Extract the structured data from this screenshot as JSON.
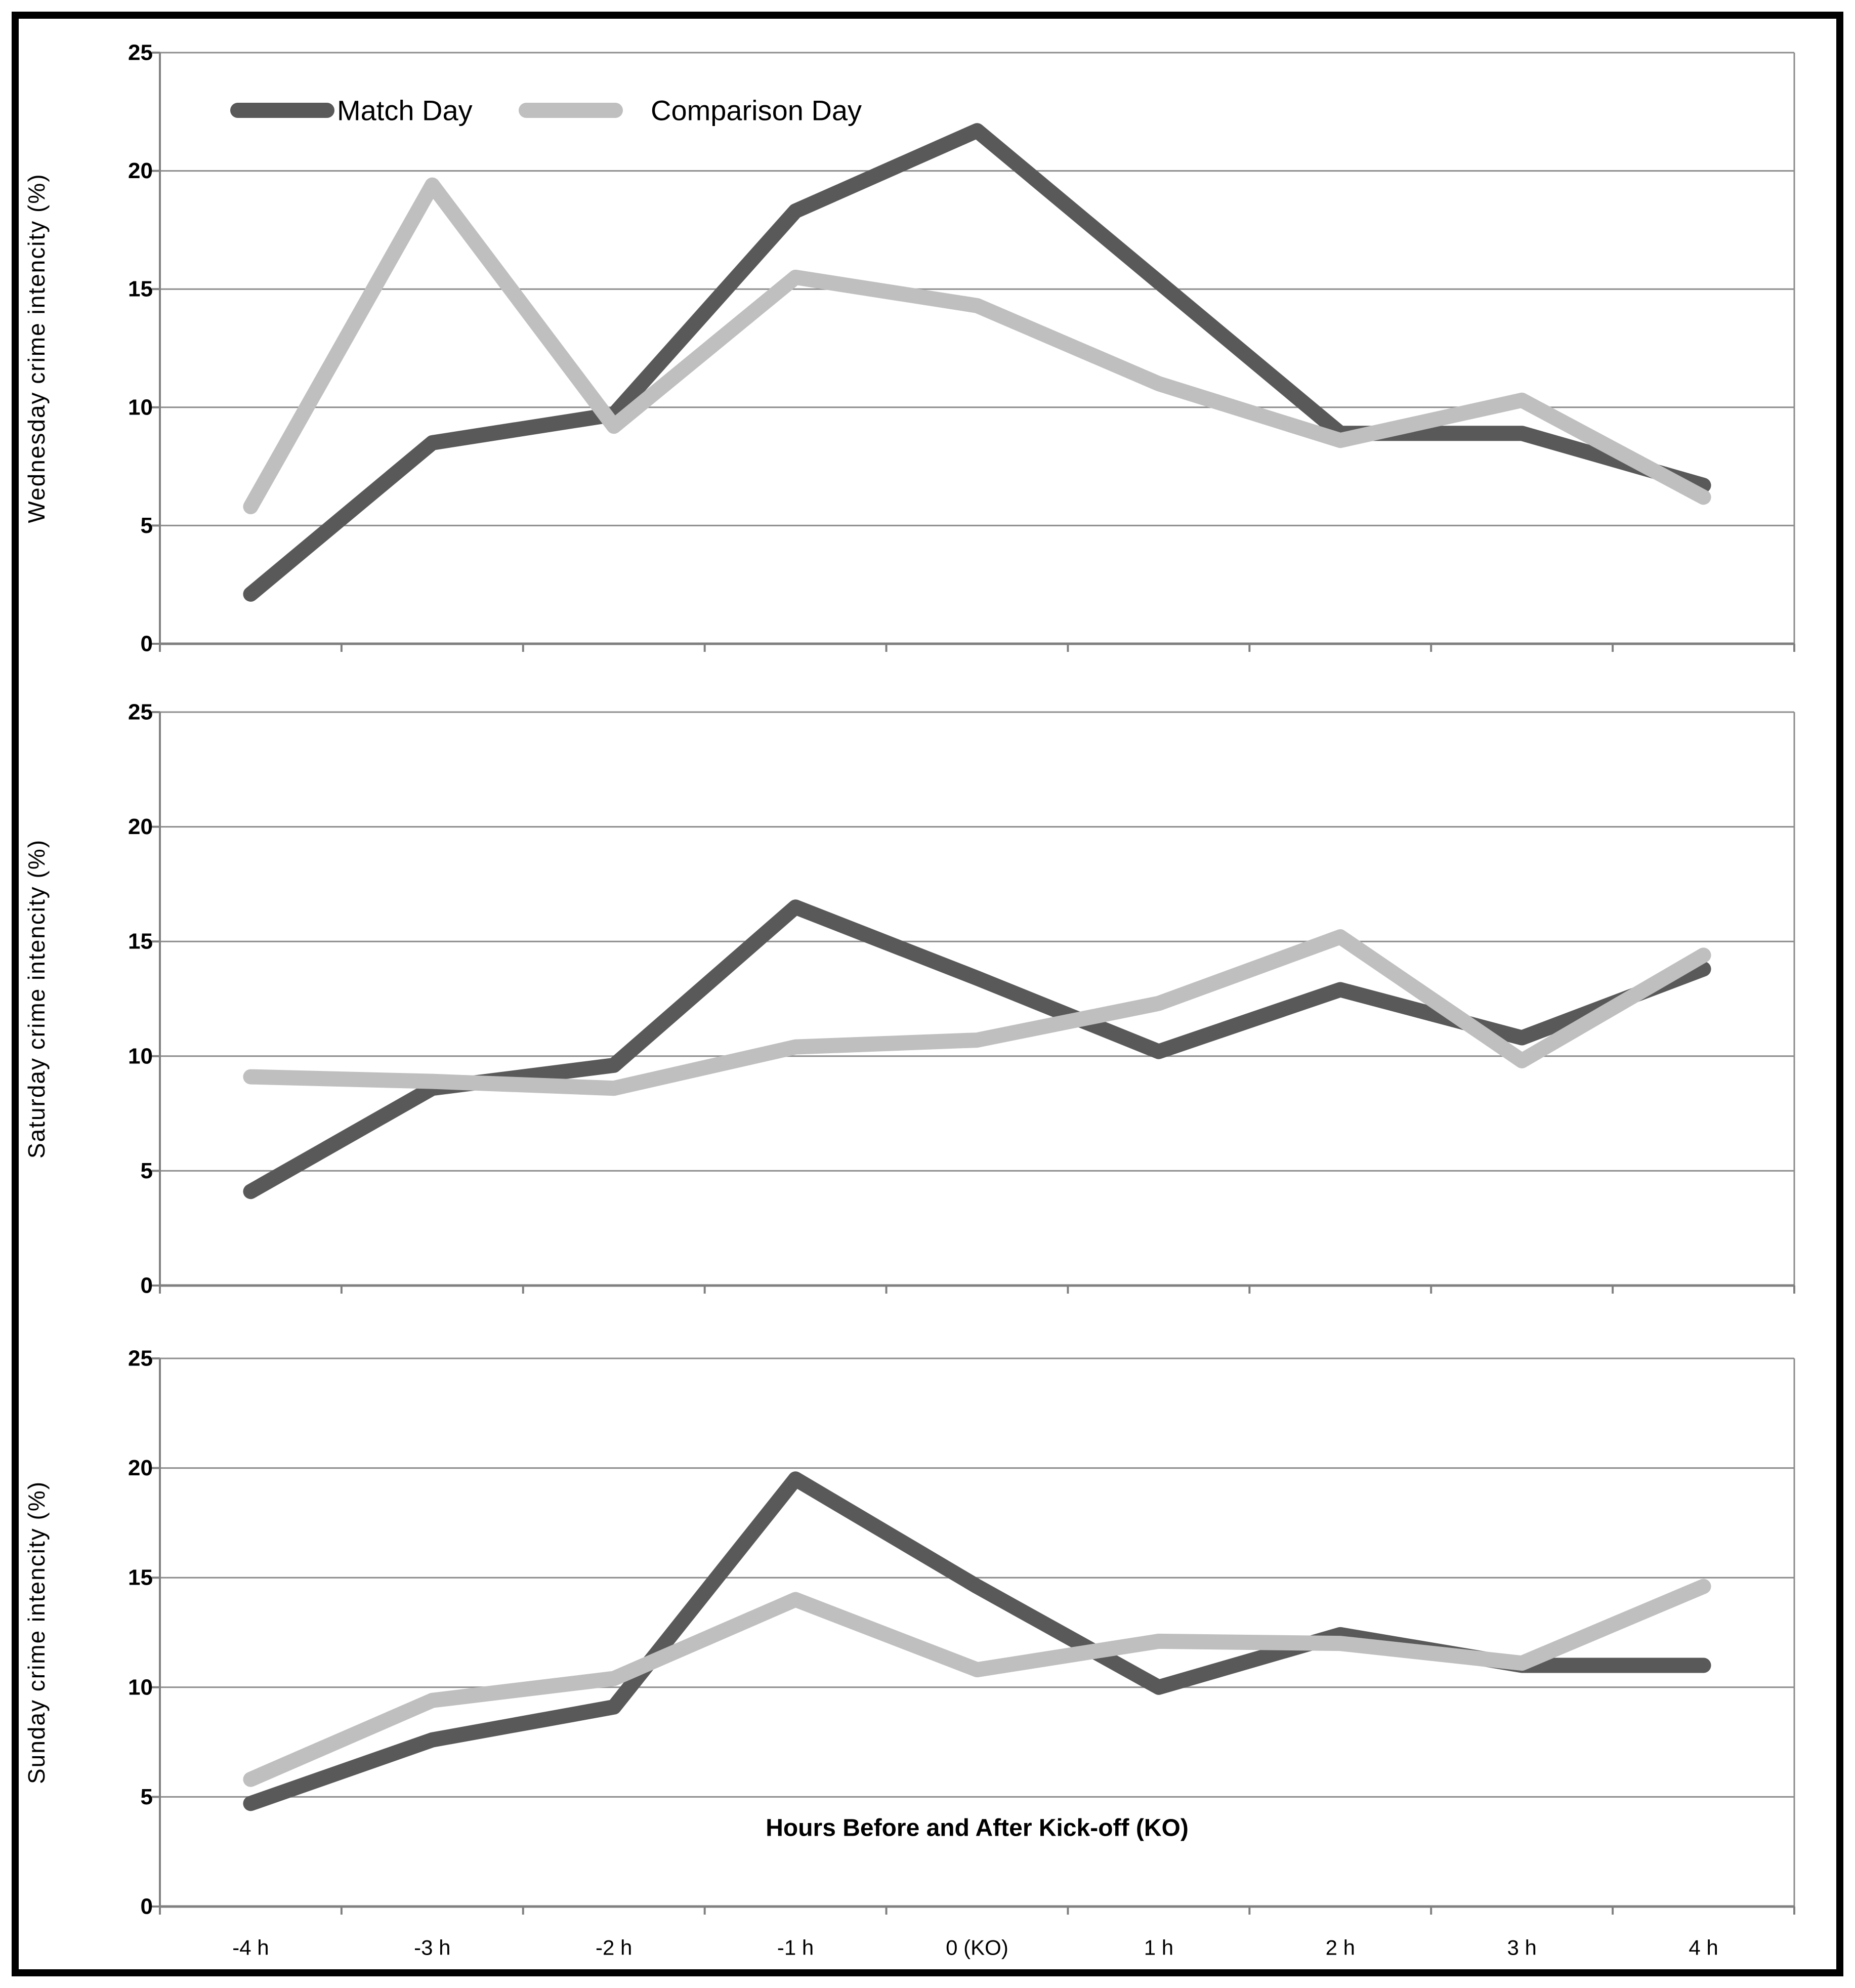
{
  "colors": {
    "match_day": "#595959",
    "comparison_day": "#bfbfbf",
    "gridline": "#8c8c8c",
    "axis": "#808080",
    "border": "#000000",
    "text": "#000000"
  },
  "chart_data": [
    {
      "type": "line",
      "panel": "wednesday",
      "ylabel": "Wednesday crime intencity (%)",
      "xlabel": "",
      "categories": [
        "-4 h",
        "-3 h",
        "-2 h",
        "-1 h",
        "0 (KO)",
        "1 h",
        "2 h",
        "3 h",
        "4 h"
      ],
      "ylim": [
        0,
        25
      ],
      "yticks": [
        0,
        5,
        10,
        15,
        20,
        25
      ],
      "grid": true,
      "legend_position": "top-left-inside",
      "series": [
        {
          "name": "Match Day",
          "values": [
            2.1,
            8.5,
            9.7,
            18.3,
            21.7,
            15.3,
            8.9,
            8.9,
            6.7
          ]
        },
        {
          "name": "Comparison Day",
          "values": [
            5.8,
            19.4,
            9.2,
            15.5,
            14.3,
            11.0,
            8.6,
            10.3,
            6.2
          ]
        }
      ]
    },
    {
      "type": "line",
      "panel": "saturday",
      "ylabel": "Saturday crime intencity (%)",
      "xlabel": "",
      "categories": [
        "-4 h",
        "-3 h",
        "-2 h",
        "-1 h",
        "0 (KO)",
        "1 h",
        "2 h",
        "3 h",
        "4 h"
      ],
      "ylim": [
        0,
        25
      ],
      "yticks": [
        0,
        5,
        10,
        15,
        20,
        25
      ],
      "grid": true,
      "series": [
        {
          "name": "Match Day",
          "values": [
            4.1,
            8.6,
            9.6,
            16.5,
            13.4,
            10.2,
            12.9,
            10.8,
            13.8
          ]
        },
        {
          "name": "Comparison Day",
          "values": [
            9.1,
            8.9,
            8.6,
            10.4,
            10.7,
            12.3,
            15.2,
            9.8,
            14.4
          ]
        }
      ]
    },
    {
      "type": "line",
      "panel": "sunday",
      "ylabel": "Sunday crime intencity (%)",
      "xlabel": "Hours Before and After Kick-off (KO)",
      "categories": [
        "-4 h",
        "-3 h",
        "-2 h",
        "-1 h",
        "0 (KO)",
        "1 h",
        "2 h",
        "3 h",
        "4 h"
      ],
      "ylim": [
        0,
        25
      ],
      "yticks": [
        0,
        5,
        10,
        15,
        20,
        25
      ],
      "grid": true,
      "series": [
        {
          "name": "Match Day",
          "values": [
            4.7,
            7.6,
            9.1,
            19.5,
            14.6,
            10.0,
            12.4,
            11.0,
            11.0
          ]
        },
        {
          "name": "Comparison Day",
          "values": [
            5.8,
            9.4,
            10.4,
            14.0,
            10.8,
            12.1,
            12.0,
            11.1,
            14.6
          ]
        }
      ]
    }
  ]
}
